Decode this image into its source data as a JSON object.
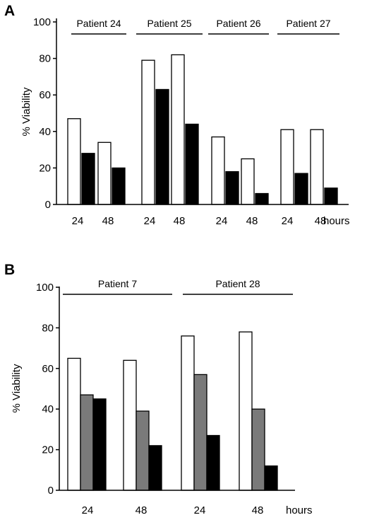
{
  "chart_data": [
    {
      "type": "bar",
      "panel": "A",
      "ylabel": "% Viability",
      "ylim": [
        0,
        100
      ],
      "yticks": [
        "0",
        "20",
        "40",
        "60",
        "80",
        "100"
      ],
      "x_unit_label": "hours",
      "group_labels": [
        "Patient 24",
        "Patient 25",
        "Patient 26",
        "Patient 27"
      ],
      "categories": [
        "24",
        "48",
        "24",
        "48",
        "24",
        "48",
        "24",
        "48"
      ],
      "series_colors": [
        "#ffffff",
        "#000000"
      ],
      "series": [
        {
          "values": [
            47,
            34,
            79,
            82,
            37,
            25,
            41,
            41
          ]
        },
        {
          "values": [
            28,
            20,
            63,
            44,
            18,
            6,
            17,
            9
          ]
        }
      ]
    },
    {
      "type": "bar",
      "panel": "B",
      "ylabel": "% Viability",
      "ylim": [
        0,
        100
      ],
      "yticks": [
        "0",
        "20",
        "40",
        "60",
        "80",
        "100"
      ],
      "x_unit_label": "hours",
      "group_labels": [
        "Patient 7",
        "Patient 28"
      ],
      "categories": [
        "24",
        "48",
        "24",
        "48"
      ],
      "series_colors": [
        "#ffffff",
        "#7a7a7a",
        "#000000"
      ],
      "series": [
        {
          "values": [
            65,
            64,
            76,
            78
          ]
        },
        {
          "values": [
            47,
            39,
            57,
            40
          ]
        },
        {
          "values": [
            45,
            22,
            27,
            12
          ]
        }
      ]
    }
  ]
}
